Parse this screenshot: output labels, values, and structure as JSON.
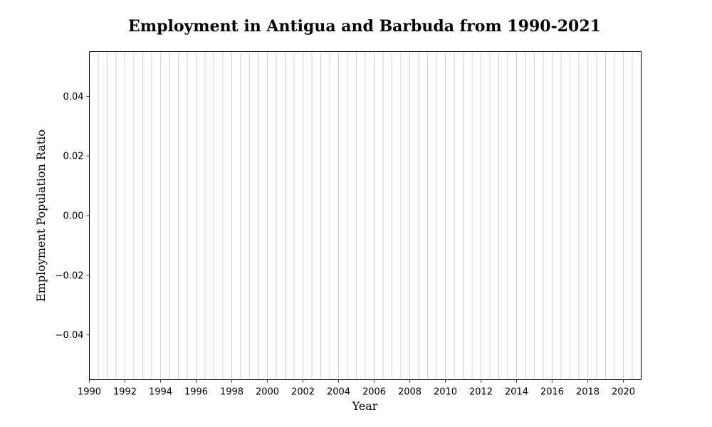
{
  "chart_data": {
    "type": "line",
    "title": "Employment in Antigua and Barbuda from 1990-2021",
    "xlabel": "Year",
    "ylabel": "Employment Population Ratio",
    "xlim": [
      1990,
      2021
    ],
    "ylim": [
      -0.055,
      0.055
    ],
    "x_ticks": [
      1990,
      1992,
      1994,
      1996,
      1998,
      2000,
      2002,
      2004,
      2006,
      2008,
      2010,
      2012,
      2014,
      2016,
      2018,
      2020
    ],
    "x_tick_labels": [
      "1990",
      "1992",
      "1994",
      "1996",
      "1998",
      "2000",
      "2002",
      "2004",
      "2006",
      "2008",
      "2010",
      "2012",
      "2014",
      "2016",
      "2018",
      "2020"
    ],
    "y_ticks": [
      0.04,
      0.02,
      0.0,
      -0.02,
      -0.04
    ],
    "y_tick_labels": [
      "0.04",
      "0.02",
      "0.00",
      "−0.02",
      "−0.04"
    ],
    "grid": "vertical",
    "grid_step": 0.5,
    "series": [],
    "colors": {
      "grid": "#c8c8c8",
      "frame": "#000000",
      "background": "#ffffff"
    }
  }
}
